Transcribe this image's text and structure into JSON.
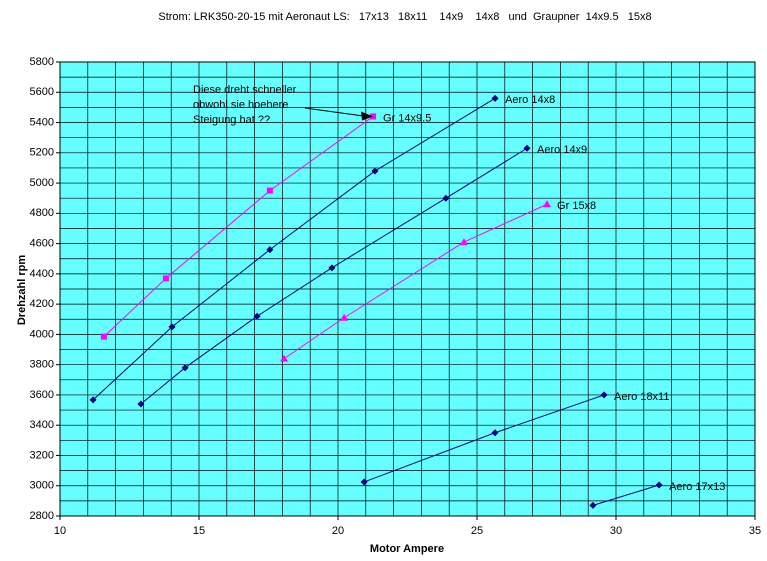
{
  "chart_data": {
    "type": "scatter",
    "title": "Strom: LRK350-20-15 mit Aeronaut LS:   17x13   18x11    14x9    14x8   und  Graupner  14x9.5   15x8",
    "x_label": "Motor Ampere",
    "y_label": "Drehzahl rpm",
    "xlim": [
      10,
      35
    ],
    "ylim": [
      2800,
      5800
    ],
    "xticks": [
      10,
      15,
      20,
      25,
      30,
      35
    ],
    "yticks": [
      2800,
      3000,
      3200,
      3400,
      3600,
      3800,
      4000,
      4200,
      4400,
      4600,
      4800,
      5000,
      5200,
      5400,
      5600,
      5800
    ],
    "x_grid_step": 1,
    "y_grid_step": 100,
    "background": "#66ffff",
    "annotation": [
      "Diese dreht schneller",
      "obwohl sie hoehere",
      "Steigung hat ??"
    ],
    "series": [
      {
        "name": "Gr 14x9.5",
        "color": "#ff00ff",
        "marker": "square",
        "x": [
          11.58,
          13.81,
          17.55,
          21.26
        ],
        "values": [
          3985,
          4370,
          4950,
          5440
        ]
      },
      {
        "name": "Aero 14x8",
        "color": "#000080",
        "marker": "diamond",
        "x": [
          11.19,
          14.03,
          17.55,
          21.33,
          25.65
        ],
        "values": [
          3567,
          4050,
          4560,
          5080,
          5560
        ]
      },
      {
        "name": "Aero 14x9",
        "color": "#000080",
        "marker": "diamond",
        "x": [
          12.91,
          14.5,
          17.09,
          19.78,
          23.88,
          26.8
        ],
        "values": [
          3540,
          3780,
          4120,
          4440,
          4900,
          5230
        ]
      },
      {
        "name": "Gr 15x8",
        "color": "#ff00ff",
        "marker": "triangle",
        "x": [
          18.06,
          20.22,
          24.53,
          27.52
        ],
        "values": [
          3840,
          4110,
          4610,
          4860
        ]
      },
      {
        "name": "Aero 18x11",
        "color": "#000080",
        "marker": "diamond",
        "x": [
          20.94,
          25.65,
          29.57
        ],
        "values": [
          3025,
          3350,
          3600
        ]
      },
      {
        "name": "Aero 17x13",
        "color": "#000080",
        "marker": "diamond",
        "x": [
          29.17,
          31.55
        ],
        "values": [
          2870,
          3005
        ]
      }
    ]
  }
}
